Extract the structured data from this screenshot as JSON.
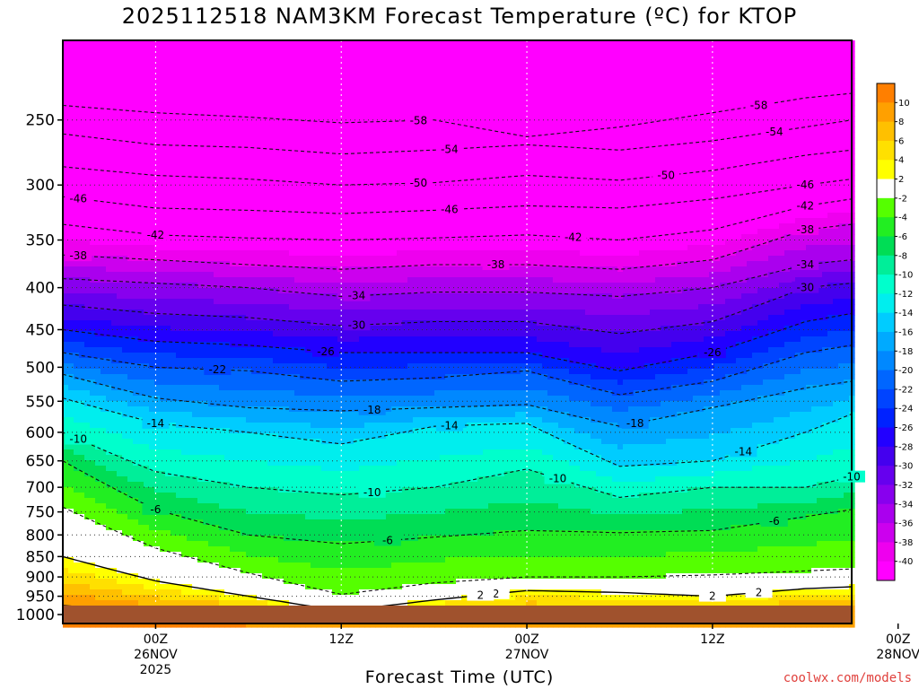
{
  "chart_data": {
    "type": "heatmap",
    "title": "2025112518 NAM3KM Forecast Temperature (ºC) for KTOP",
    "xlabel": "Forecast Time (UTC)",
    "ylabel": "",
    "credit": "coolwx.com/models",
    "y_axis": {
      "scale": "log-pressure",
      "units": "hPa",
      "range": [
        200,
        1000
      ],
      "ticks": [
        "250",
        "300",
        "350",
        "400",
        "450",
        "500",
        "550",
        "600",
        "650",
        "700",
        "750",
        "800",
        "850",
        "900",
        "950",
        "1000"
      ]
    },
    "x_axis": {
      "range_hours": [
        -6,
        45
      ],
      "ticks": [
        {
          "h": 0,
          "line1": "00Z",
          "line2": "26NOV",
          "line3": "2025"
        },
        {
          "h": 12,
          "line1": "12Z",
          "line2": "",
          "line3": ""
        },
        {
          "h": 24,
          "line1": "00Z",
          "line2": "27NOV",
          "line3": ""
        },
        {
          "h": 36,
          "line1": "12Z",
          "line2": "",
          "line3": ""
        },
        {
          "h": 48,
          "line1": "00Z",
          "line2": "28NOV",
          "line3": ""
        }
      ]
    },
    "grid": true,
    "colorbar": {
      "placement": "right",
      "ticks": [
        "10",
        "8",
        "6",
        "4",
        "2",
        "-2",
        "-4",
        "-6",
        "-8",
        "-10",
        "-12",
        "-14",
        "-16",
        "-18",
        "-20",
        "-22",
        "-24",
        "-26",
        "-28",
        "-30",
        "-32",
        "-34",
        "-36",
        "-38",
        "-40"
      ],
      "colors": [
        "#ff7f00",
        "#ffa000",
        "#ffc000",
        "#ffe000",
        "#ffff00",
        "#ffffff",
        "#55ff00",
        "#22ee22",
        "#00dd55",
        "#00ee99",
        "#00ffcc",
        "#00eeee",
        "#00ccff",
        "#00aaff",
        "#0088ff",
        "#0066ff",
        "#0044ff",
        "#0022ff",
        "#2200ff",
        "#4400ee",
        "#6600ee",
        "#8800ee",
        "#aa00ee",
        "#cc00ee",
        "#ee00ee",
        "#ff00ff"
      ]
    },
    "contour_labels": [
      "-58",
      "-58",
      "-54",
      "-54",
      "-50",
      "-50",
      "-46",
      "-46",
      "-46",
      "-42",
      "-42",
      "-42",
      "-38",
      "-38",
      "-38",
      "-34",
      "-34",
      "-30",
      "-30",
      "-26",
      "-26",
      "-22",
      "-18",
      "-18",
      "-14",
      "-14",
      "-14",
      "-10",
      "-10",
      "-10",
      "-10",
      "-6",
      "-6",
      "-6",
      "2",
      "2",
      "2",
      "2"
    ],
    "isotherm_profiles": {
      "times_h": [
        -6,
        0,
        6,
        12,
        18,
        24,
        30,
        36,
        42,
        45
      ],
      "levels": [
        {
          "t": 10,
          "p": [
            975,
            995,
            1000,
            1000,
            1000,
            1000,
            1000,
            1000,
            1000,
            1000
          ]
        },
        {
          "t": 2,
          "p": [
            850,
            910,
            950,
            990,
            960,
            935,
            940,
            950,
            930,
            925
          ]
        },
        {
          "t": -2,
          "p": [
            740,
            830,
            890,
            945,
            915,
            900,
            900,
            895,
            885,
            880
          ]
        },
        {
          "t": -6,
          "p": [
            650,
            745,
            800,
            820,
            805,
            790,
            795,
            790,
            760,
            745
          ]
        },
        {
          "t": -10,
          "p": [
            600,
            670,
            700,
            715,
            700,
            665,
            720,
            700,
            700,
            680
          ]
        },
        {
          "t": -14,
          "p": [
            545,
            585,
            600,
            620,
            590,
            585,
            660,
            650,
            600,
            570
          ]
        },
        {
          "t": -18,
          "p": [
            510,
            545,
            560,
            565,
            560,
            555,
            590,
            560,
            530,
            520
          ]
        },
        {
          "t": -22,
          "p": [
            480,
            500,
            505,
            520,
            515,
            505,
            540,
            520,
            480,
            470
          ]
        },
        {
          "t": -26,
          "p": [
            450,
            465,
            470,
            480,
            480,
            480,
            505,
            480,
            440,
            430
          ]
        },
        {
          "t": -30,
          "p": [
            420,
            430,
            435,
            445,
            440,
            440,
            455,
            440,
            400,
            395
          ]
        },
        {
          "t": -34,
          "p": [
            390,
            395,
            400,
            410,
            405,
            405,
            410,
            400,
            375,
            370
          ]
        },
        {
          "t": -38,
          "p": [
            365,
            370,
            375,
            380,
            375,
            375,
            380,
            370,
            340,
            335
          ]
        },
        {
          "t": -42,
          "p": [
            335,
            345,
            348,
            350,
            348,
            345,
            350,
            340,
            318,
            312
          ]
        },
        {
          "t": -46,
          "p": [
            310,
            320,
            322,
            325,
            322,
            318,
            320,
            312,
            300,
            295
          ]
        },
        {
          "t": -50,
          "p": [
            285,
            292,
            295,
            300,
            298,
            292,
            296,
            288,
            276,
            272
          ]
        },
        {
          "t": -54,
          "p": [
            260,
            268,
            270,
            275,
            272,
            268,
            272,
            265,
            255,
            250
          ]
        },
        {
          "t": -58,
          "p": [
            240,
            245,
            248,
            252,
            250,
            262,
            255,
            245,
            235,
            232
          ]
        }
      ]
    }
  }
}
